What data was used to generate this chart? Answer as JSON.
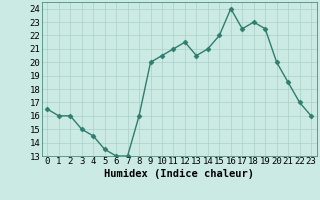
{
  "x": [
    0,
    1,
    2,
    3,
    4,
    5,
    6,
    7,
    8,
    9,
    10,
    11,
    12,
    13,
    14,
    15,
    16,
    17,
    18,
    19,
    20,
    21,
    22,
    23
  ],
  "y": [
    16.5,
    16.0,
    16.0,
    15.0,
    14.5,
    13.5,
    13.0,
    13.0,
    16.0,
    20.0,
    20.5,
    21.0,
    21.5,
    20.5,
    21.0,
    22.0,
    24.0,
    22.5,
    23.0,
    22.5,
    20.0,
    18.5,
    17.0,
    16.0
  ],
  "line_color": "#2e7d6e",
  "marker": "D",
  "marker_size": 2.5,
  "bg_color": "#cceae4",
  "grid_color": "#aacfc8",
  "xlabel": "Humidex (Indice chaleur)",
  "ylim": [
    13,
    24.5
  ],
  "xlim": [
    -0.5,
    23.5
  ],
  "yticks": [
    13,
    14,
    15,
    16,
    17,
    18,
    19,
    20,
    21,
    22,
    23,
    24
  ],
  "xticks": [
    0,
    1,
    2,
    3,
    4,
    5,
    6,
    7,
    8,
    9,
    10,
    11,
    12,
    13,
    14,
    15,
    16,
    17,
    18,
    19,
    20,
    21,
    22,
    23
  ],
  "xlabel_fontsize": 7.5,
  "tick_fontsize": 6.5,
  "line_width": 1.0
}
